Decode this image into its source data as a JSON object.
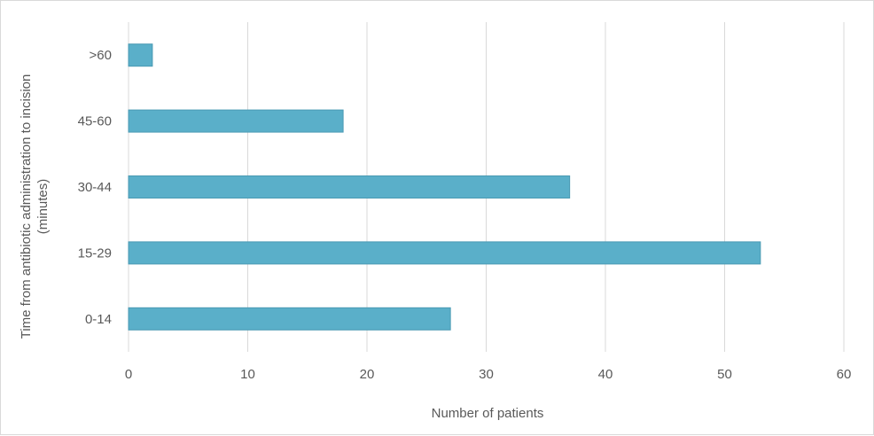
{
  "chart_data": {
    "type": "bar",
    "orientation": "horizontal",
    "categories": [
      "0-14",
      "15-29",
      "30-44",
      "45-60",
      ">60"
    ],
    "values": [
      27,
      53,
      37,
      18,
      2
    ],
    "title": "",
    "xlabel": "Number of patients",
    "ylabel_lines": [
      "Time from antibiotic administration to incision",
      "(minutes)"
    ],
    "xlim": [
      0,
      60
    ],
    "xticks": [
      0,
      10,
      20,
      30,
      40,
      50,
      60
    ],
    "grid": "vertical",
    "legend": "none",
    "bar_color": "#5aafc9",
    "bar_edge_color": "#4a9ab3",
    "grid_color": "#d9d9d9",
    "text_color": "#595959"
  }
}
